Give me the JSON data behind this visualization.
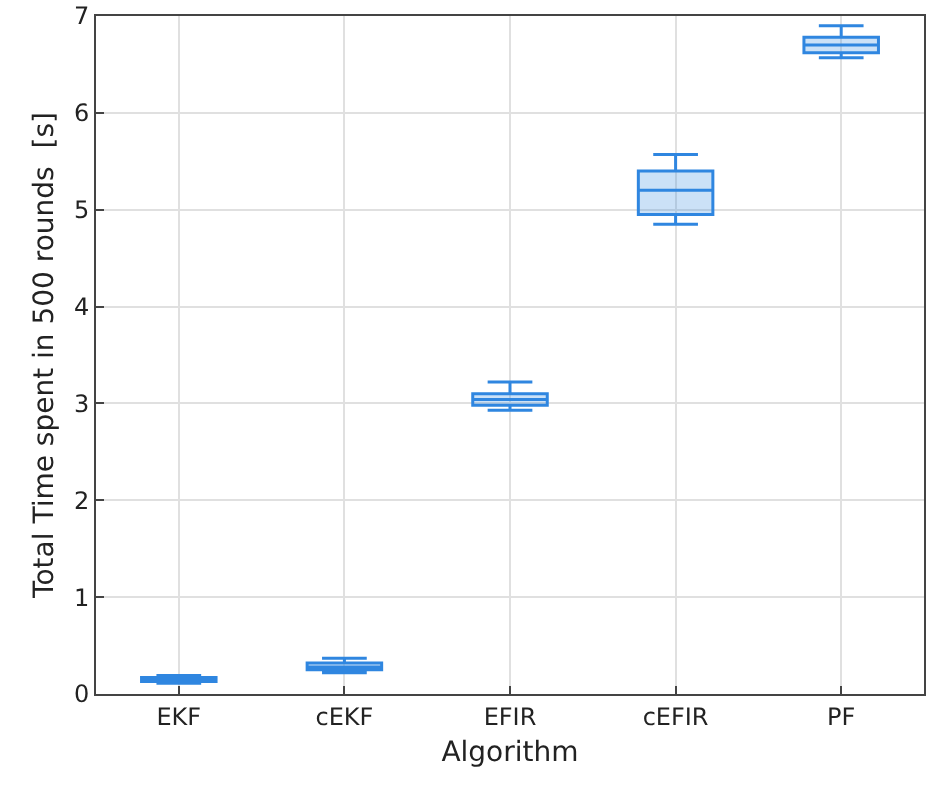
{
  "chart_data": {
    "type": "box",
    "xlabel": "Algorithm",
    "ylabel": "Total Time spent in 500 rounds  [s]",
    "categories": [
      "EKF",
      "cEKF",
      "EFIR",
      "cEFIR",
      "PF"
    ],
    "series": [
      {
        "color": "#2f86e0",
        "boxes": [
          {
            "low": 0.11,
            "q1": 0.13,
            "median": 0.15,
            "q3": 0.17,
            "high": 0.19
          },
          {
            "low": 0.22,
            "q1": 0.25,
            "median": 0.28,
            "q3": 0.32,
            "high": 0.37
          },
          {
            "low": 2.93,
            "q1": 2.98,
            "median": 3.04,
            "q3": 3.1,
            "high": 3.22
          },
          {
            "low": 4.85,
            "q1": 4.95,
            "median": 5.2,
            "q3": 5.4,
            "high": 5.57
          },
          {
            "low": 6.57,
            "q1": 6.62,
            "median": 6.7,
            "q3": 6.78,
            "high": 6.9
          }
        ]
      }
    ],
    "ylim": [
      0,
      7
    ],
    "yticks": [
      0,
      1,
      2,
      3,
      4,
      5,
      6,
      7
    ],
    "grid": true
  }
}
